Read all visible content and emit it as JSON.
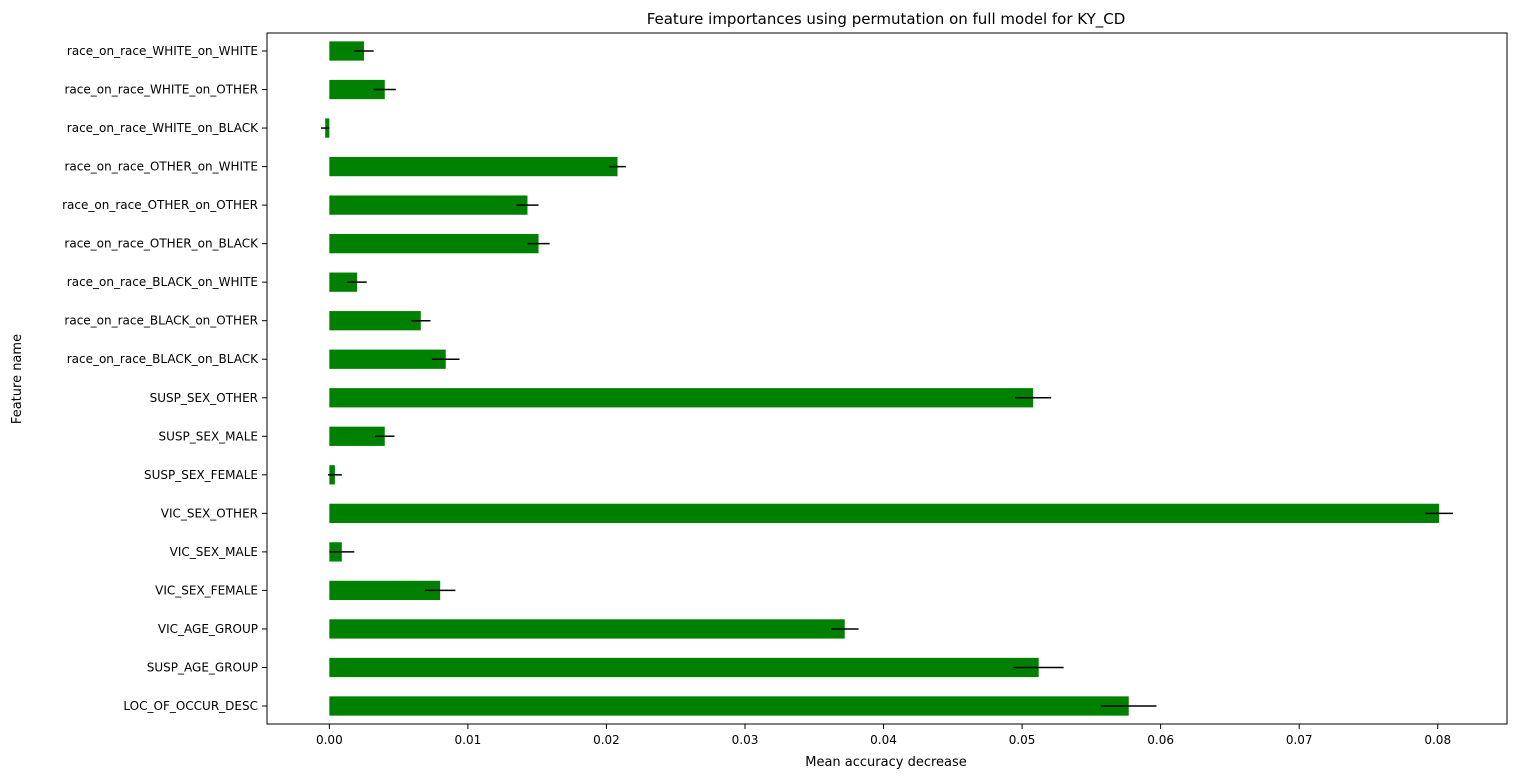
{
  "chart_data": {
    "type": "bar",
    "orientation": "horizontal",
    "title": "Feature importances using permutation on full model for KY_CD",
    "xlabel": "Mean accuracy decrease",
    "ylabel": "Feature name",
    "xlim": [
      -0.0045,
      0.085
    ],
    "xticks": [
      0.0,
      0.01,
      0.02,
      0.03,
      0.04,
      0.05,
      0.06,
      0.07,
      0.08
    ],
    "xtick_labels": [
      "0.00",
      "0.01",
      "0.02",
      "0.03",
      "0.04",
      "0.05",
      "0.06",
      "0.07",
      "0.08"
    ],
    "bar_color": "#008000",
    "error_color": "#000000",
    "grid": false,
    "categories": [
      "LOC_OF_OCCUR_DESC",
      "SUSP_AGE_GROUP",
      "VIC_AGE_GROUP",
      "VIC_SEX_FEMALE",
      "VIC_SEX_MALE",
      "VIC_SEX_OTHER",
      "SUSP_SEX_FEMALE",
      "SUSP_SEX_MALE",
      "SUSP_SEX_OTHER",
      "race_on_race_BLACK_on_BLACK",
      "race_on_race_BLACK_on_OTHER",
      "race_on_race_BLACK_on_WHITE",
      "race_on_race_OTHER_on_BLACK",
      "race_on_race_OTHER_on_OTHER",
      "race_on_race_OTHER_on_WHITE",
      "race_on_race_WHITE_on_BLACK",
      "race_on_race_WHITE_on_OTHER",
      "race_on_race_WHITE_on_WHITE"
    ],
    "values": [
      0.0577,
      0.0512,
      0.0372,
      0.008,
      0.0009,
      0.0801,
      0.0004,
      0.004,
      0.0508,
      0.0084,
      0.0066,
      0.002,
      0.0151,
      0.0143,
      0.0208,
      -0.0003,
      0.004,
      0.0025
    ],
    "errors": [
      0.002,
      0.0018,
      0.001,
      0.0011,
      0.0009,
      0.001,
      0.0005,
      0.0007,
      0.0013,
      0.001,
      0.0007,
      0.0007,
      0.0008,
      0.0008,
      0.0006,
      0.0003,
      0.0008,
      0.0007
    ]
  }
}
